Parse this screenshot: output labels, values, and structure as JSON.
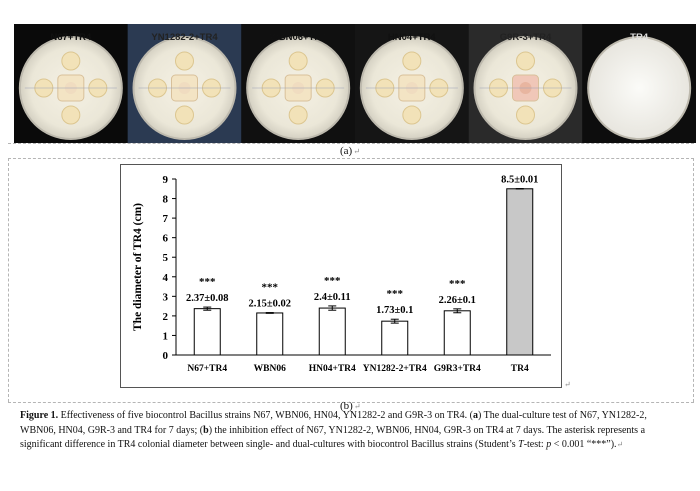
{
  "plates": [
    {
      "label": "N67+TR4"
    },
    {
      "label": "YN1282-2+TR4"
    },
    {
      "label": "WBN06+TR4"
    },
    {
      "label": "HN04+TR4"
    },
    {
      "label": "G9R-3+TR4"
    },
    {
      "label": "TR4"
    }
  ],
  "panel_a_label": "(a)",
  "panel_b_label": "(b)",
  "chart_data": {
    "type": "bar",
    "categories": [
      "N67+TR4",
      "WBN06",
      "HN04+TR4",
      "YN1282-2+TR4",
      "G9R3+TR4",
      "TR4"
    ],
    "values": [
      2.37,
      2.15,
      2.4,
      1.73,
      2.26,
      8.5
    ],
    "errors": [
      0.08,
      0.02,
      0.11,
      0.1,
      0.1,
      0.01
    ],
    "value_labels": [
      "2.37±0.08",
      "2.15±0.02",
      "2.4±0.11",
      "1.73±0.1",
      "2.26±0.1",
      "8.5±0.01"
    ],
    "significance": [
      "***",
      "***",
      "***",
      "***",
      "***",
      ""
    ],
    "bar_colors": [
      "#ffffff",
      "#ffffff",
      "#ffffff",
      "#ffffff",
      "#ffffff",
      "#c8c8c8"
    ],
    "ylabel": "The diameter of TR4 (cm)",
    "xlabel": "",
    "ylim": [
      0,
      9
    ],
    "yticks": [
      0,
      1,
      2,
      3,
      4,
      5,
      6,
      7,
      8,
      9
    ]
  },
  "caption": {
    "label": "Figure 1.",
    "text1": " Effectiveness of five biocontrol Bacillus strains N67, WBN06, HN04, YN1282-2 and G9R-3 on TR4. (",
    "a": "a",
    "text2": ") The dual-culture test of N67, YN1282-2, WBN06, HN04, G9R-3 and TR4 for 7 days; (",
    "b": "b",
    "text3": ") the inhibition effect of N67, YN1282-2, WBN06, HN04, G9R-3 on TR4 at 7 days. The asterisk represents a significant difference in TR4 colonial diameter between single- and dual-cultures with biocontrol Bacillus strains (Student’s ",
    "t": "T",
    "text4": "-test: ",
    "p": "p",
    "text5": " < 0.001 “***”).",
    "return_mark": "↵"
  }
}
